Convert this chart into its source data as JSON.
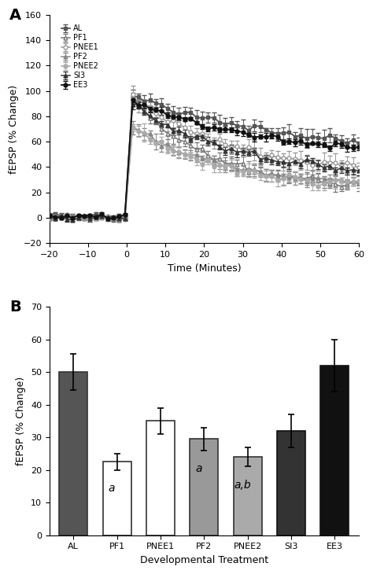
{
  "panel_A": {
    "xlabel": "Time (Minutes)",
    "ylabel": "fEPSP (% Change)",
    "xlim": [
      -20,
      60
    ],
    "ylim": [
      -20,
      160
    ],
    "yticks": [
      -20,
      0,
      20,
      40,
      60,
      80,
      100,
      120,
      140,
      160
    ],
    "xticks": [
      -20,
      -10,
      0,
      10,
      20,
      30,
      40,
      50,
      60
    ],
    "series": [
      {
        "label": "AL",
        "color": "#555555",
        "marker": "s",
        "marker_face": "#555555",
        "linewidth": 1.3,
        "markersize": 3.5,
        "peak_val": 100,
        "end_val": 50,
        "decay_rate": 0.028,
        "error_scale": 15
      },
      {
        "label": "PF1",
        "color": "#777777",
        "marker": "^",
        "marker_face": "white",
        "linewidth": 1.1,
        "markersize": 3.5,
        "peak_val": 100,
        "end_val": 22,
        "decay_rate": 0.048,
        "error_scale": 14
      },
      {
        "label": "PNEE1",
        "color": "#999999",
        "marker": "o",
        "marker_face": "white",
        "linewidth": 1.1,
        "markersize": 3.5,
        "peak_val": 100,
        "end_val": 35,
        "decay_rate": 0.04,
        "error_scale": 18
      },
      {
        "label": "PF2",
        "color": "#888888",
        "marker": "^",
        "marker_face": "#888888",
        "linewidth": 1.1,
        "markersize": 3.5,
        "peak_val": 75,
        "end_val": 25,
        "decay_rate": 0.043,
        "error_scale": 14
      },
      {
        "label": "PNEE2",
        "color": "#aaaaaa",
        "marker": "o",
        "marker_face": "#aaaaaa",
        "linewidth": 1.1,
        "markersize": 3.5,
        "peak_val": 75,
        "end_val": 24,
        "decay_rate": 0.046,
        "error_scale": 14
      },
      {
        "label": "SI3",
        "color": "#333333",
        "marker": "^",
        "marker_face": "#333333",
        "linewidth": 1.1,
        "markersize": 3.5,
        "peak_val": 93,
        "end_val": 32,
        "decay_rate": 0.038,
        "error_scale": 10
      },
      {
        "label": "EE3",
        "color": "#111111",
        "marker": "o",
        "marker_face": "#111111",
        "linewidth": 1.3,
        "markersize": 3.5,
        "peak_val": 95,
        "end_val": 47,
        "decay_rate": 0.03,
        "error_scale": 8
      }
    ]
  },
  "panel_B": {
    "xlabel": "Developmental Treatment",
    "ylabel": "fEPSP (% Change)",
    "ylim": [
      0,
      70
    ],
    "yticks": [
      0,
      10,
      20,
      30,
      40,
      50,
      60,
      70
    ],
    "categories": [
      "AL",
      "PF1",
      "PNEE1",
      "PF2",
      "PNEE2",
      "SI3",
      "EE3"
    ],
    "values": [
      50.0,
      22.5,
      35.0,
      29.5,
      24.0,
      32.0,
      52.0
    ],
    "errors": [
      5.5,
      2.5,
      4.0,
      3.5,
      3.0,
      5.0,
      8.0
    ],
    "bar_colors": [
      "#555555",
      "white",
      "white",
      "#999999",
      "#aaaaaa",
      "#333333",
      "#111111"
    ],
    "bar_edgecolors": [
      "#333333",
      "#333333",
      "#333333",
      "#333333",
      "#333333",
      "#111111",
      "#111111"
    ],
    "annotations": [
      {
        "text": "",
        "bar_idx": 0
      },
      {
        "text": "a",
        "bar_idx": 1
      },
      {
        "text": "",
        "bar_idx": 2
      },
      {
        "text": "a",
        "bar_idx": 3
      },
      {
        "text": "a,b",
        "bar_idx": 4
      },
      {
        "text": "",
        "bar_idx": 5
      },
      {
        "text": "",
        "bar_idx": 6
      }
    ]
  }
}
